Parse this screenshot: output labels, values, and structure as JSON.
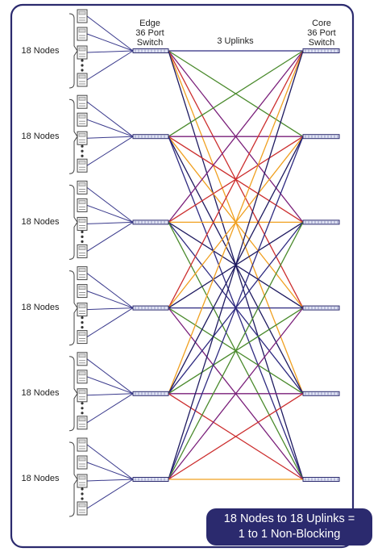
{
  "labels": {
    "edge_switch": [
      "Edge",
      "36 Port",
      "Switch"
    ],
    "core_switch": [
      "Core",
      "36 Port",
      "Switch"
    ],
    "uplinks": "3 Uplinks",
    "node_group": "18 Nodes"
  },
  "callout": {
    "line1": "18 Nodes to 18 Uplinks =",
    "line2": "1 to 1 Non-Blocking"
  },
  "topology": {
    "edge_switch_count": 6,
    "core_switch_count": 6,
    "uplinks_per_pair": 3,
    "nodes_per_edge": 18,
    "link_colors": [
      "#2e2a80",
      "#4a8a2c",
      "#7a1f7a",
      "#cc2e2e",
      "#f0a020",
      "#1e1a60"
    ]
  },
  "colors": {
    "border": "#2b2a6e",
    "callout_bg": "#2b2a6e",
    "switch_fill": "#dfe3f2",
    "node_line": "#3a3a8c"
  },
  "icons": {
    "node": "server-icon",
    "switch": "switch-icon"
  }
}
